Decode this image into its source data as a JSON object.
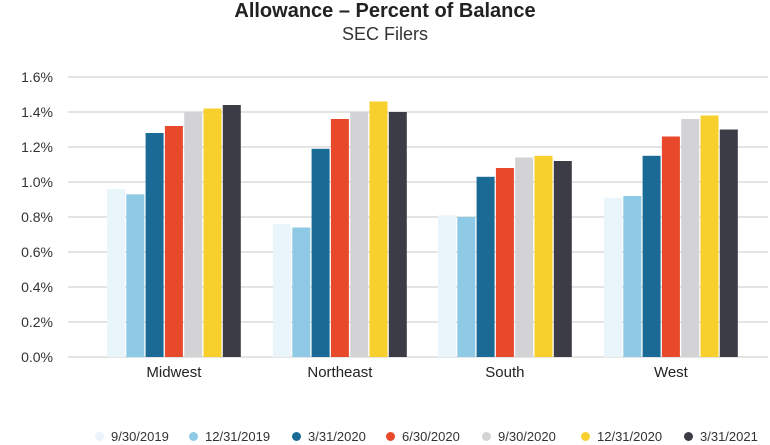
{
  "chart_data": {
    "type": "bar",
    "title": "Allowance – Percent of Balance",
    "subtitle": "SEC Filers",
    "xlabel": "",
    "ylabel": "",
    "categories": [
      "Midwest",
      "Northeast",
      "South",
      "West"
    ],
    "ylim": [
      0,
      1.6
    ],
    "yticks": [
      "0.0%",
      "0.2%",
      "0.4%",
      "0.6%",
      "0.8%",
      "1.0%",
      "1.2%",
      "1.4%",
      "1.6%"
    ],
    "grid": true,
    "legend_position": "bottom",
    "series": [
      {
        "name": "9/30/2019",
        "color": "#eaf5fb",
        "values": [
          0.96,
          0.76,
          0.81,
          0.91
        ]
      },
      {
        "name": "12/31/2019",
        "color": "#8ecae6",
        "values": [
          0.93,
          0.74,
          0.8,
          0.92
        ]
      },
      {
        "name": "3/31/2020",
        "color": "#1a6a96",
        "values": [
          1.28,
          1.19,
          1.03,
          1.15
        ]
      },
      {
        "name": "6/30/2020",
        "color": "#e8492a",
        "values": [
          1.32,
          1.36,
          1.08,
          1.26
        ]
      },
      {
        "name": "9/30/2020",
        "color": "#d3d3d6",
        "values": [
          1.4,
          1.4,
          1.14,
          1.36
        ]
      },
      {
        "name": "12/31/2020",
        "color": "#f7d02e",
        "values": [
          1.42,
          1.46,
          1.15,
          1.38
        ]
      },
      {
        "name": "3/31/2021",
        "color": "#3c3c46",
        "values": [
          1.44,
          1.4,
          1.12,
          1.3
        ]
      }
    ]
  }
}
